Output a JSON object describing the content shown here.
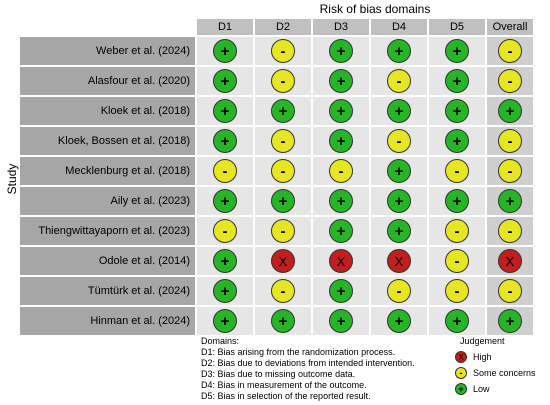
{
  "title": "Risk of bias domains",
  "y_label": "Study",
  "headers": [
    "D1",
    "D2",
    "D3",
    "D4",
    "D5",
    "Overall"
  ],
  "symbols": {
    "low": "+",
    "some": "-",
    "high": "X"
  },
  "studies": [
    {
      "name": "Weber et al. (2024)",
      "ratings": [
        "low",
        "some",
        "low",
        "low",
        "low",
        "some"
      ]
    },
    {
      "name": "Alasfour et al. (2020)",
      "ratings": [
        "low",
        "some",
        "low",
        "some",
        "low",
        "some"
      ]
    },
    {
      "name": "Kloek et al. (2018)",
      "ratings": [
        "low",
        "low",
        "low",
        "low",
        "low",
        "low"
      ]
    },
    {
      "name": "Kloek, Bossen et al. (2018)",
      "ratings": [
        "low",
        "some",
        "low",
        "some",
        "low",
        "some"
      ]
    },
    {
      "name": "Mecklenburg et al. (2018)",
      "ratings": [
        "some",
        "some",
        "some",
        "low",
        "some",
        "some"
      ]
    },
    {
      "name": "Aily et al. (2023)",
      "ratings": [
        "low",
        "low",
        "low",
        "low",
        "low",
        "low"
      ]
    },
    {
      "name": "Thiengwittayaporn et al. (2023)",
      "ratings": [
        "some",
        "some",
        "low",
        "low",
        "some",
        "some"
      ]
    },
    {
      "name": "Odole et al. (2014)",
      "ratings": [
        "low",
        "high",
        "high",
        "high",
        "some",
        "high"
      ]
    },
    {
      "name": "Tümtürk et al. (2024)",
      "ratings": [
        "low",
        "some",
        "low",
        "some",
        "some",
        "some"
      ]
    },
    {
      "name": "Hinman et al. (2024)",
      "ratings": [
        "low",
        "low",
        "low",
        "low",
        "low",
        "low"
      ]
    }
  ],
  "domains_legend": {
    "heading": "Domains:",
    "items": [
      "D1: Bias arising from the randomization process.",
      "D2: Bias due to deviations from intended intervention.",
      "D3: Bias due to missing outcome data.",
      "D4: Bias in measurement of the outcome.",
      "D5: Bias in selection of the reported result."
    ]
  },
  "judgement_legend": {
    "heading": "Judgement",
    "items": [
      {
        "level": "high",
        "label": "High"
      },
      {
        "level": "some",
        "label": "Some concerns"
      },
      {
        "level": "low",
        "label": "Low"
      }
    ]
  },
  "colors": {
    "low": "#26b526",
    "some": "#e6e623",
    "high": "#c21e1e"
  }
}
